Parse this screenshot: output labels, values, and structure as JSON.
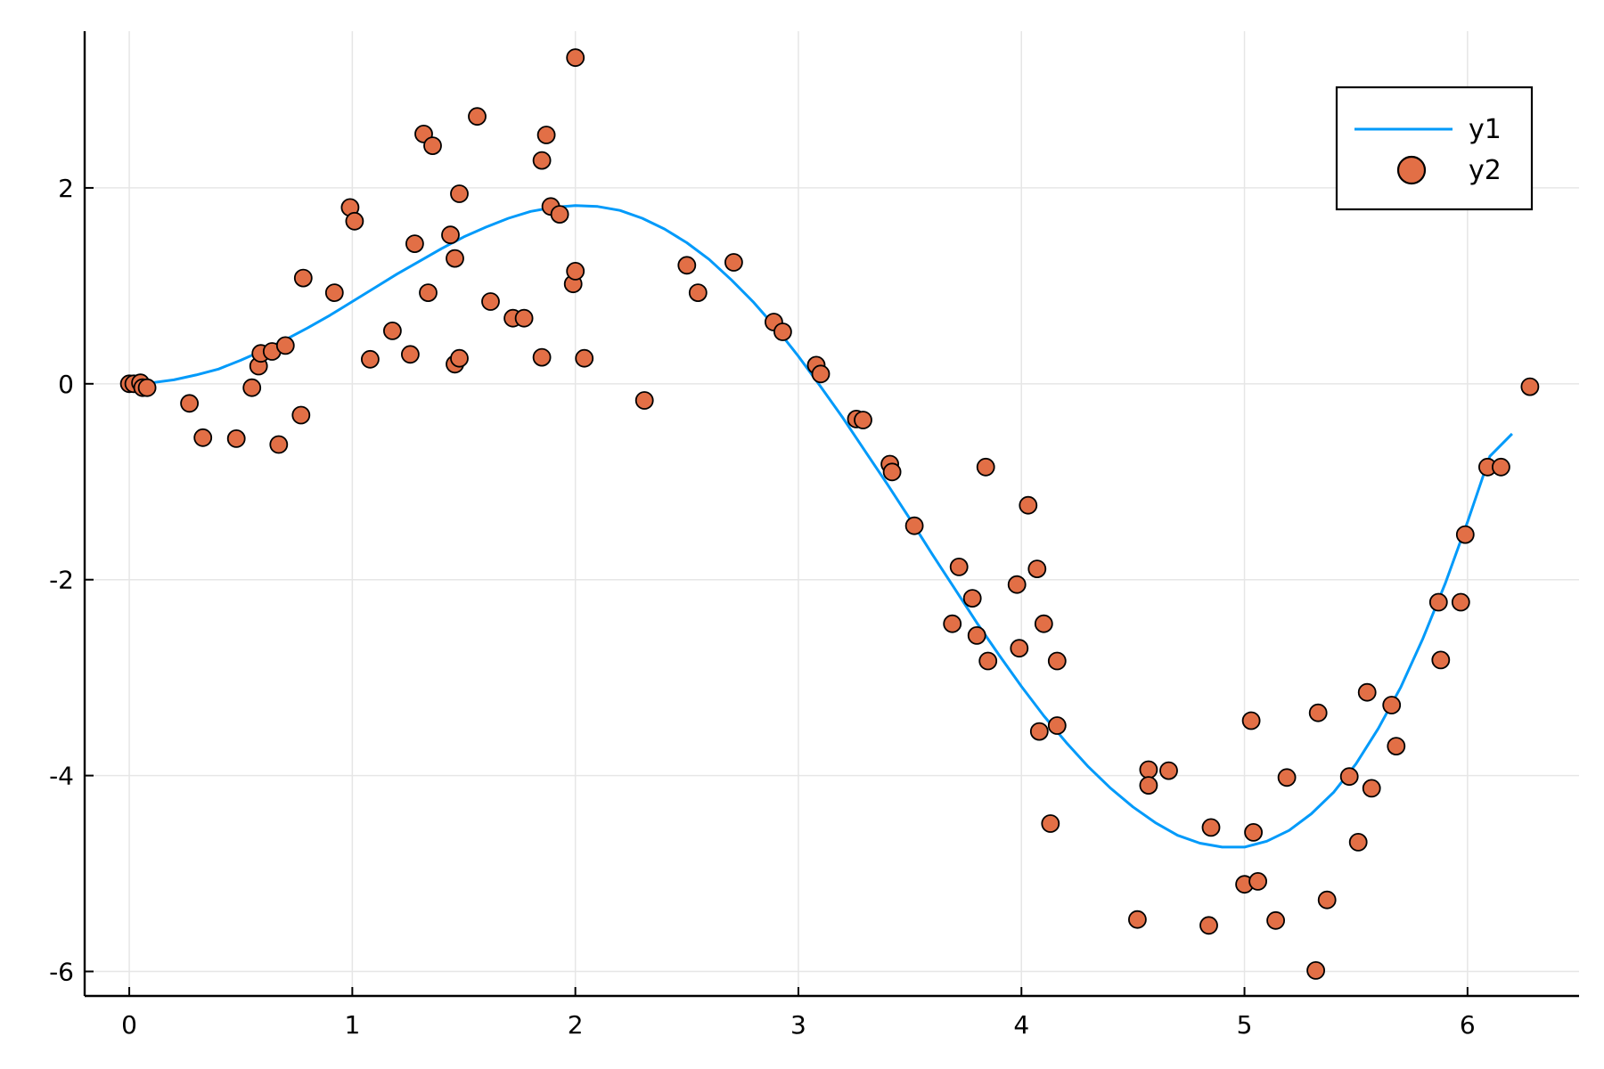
{
  "chart_data": {
    "type": "scatter",
    "title": "",
    "xlabel": "",
    "ylabel": "",
    "xlim": [
      -0.2,
      6.5
    ],
    "ylim": [
      -6.25,
      3.6
    ],
    "xticks": [
      0,
      1,
      2,
      3,
      4,
      5,
      6
    ],
    "yticks": [
      -6,
      -4,
      -2,
      0,
      2
    ],
    "grid": true,
    "legend": "top-right",
    "series": [
      {
        "name": "y1",
        "kind": "line",
        "color": "#009AFA",
        "x": [
          0.1,
          0.2,
          0.3,
          0.4,
          0.5,
          0.6,
          0.7,
          0.8,
          0.9,
          1.0,
          1.1,
          1.2,
          1.3,
          1.4,
          1.5,
          1.6,
          1.7,
          1.8,
          1.9,
          2.0,
          2.1,
          2.2,
          2.3,
          2.4,
          2.5,
          2.6,
          2.7,
          2.8,
          2.9,
          3.0,
          3.1,
          3.2,
          3.3,
          3.4,
          3.5,
          3.6,
          3.7,
          3.8,
          3.9,
          4.0,
          4.1,
          4.2,
          4.3,
          4.4,
          4.5,
          4.6,
          4.7,
          4.8,
          4.9,
          5.0,
          5.1,
          5.2,
          5.3,
          5.4,
          5.5,
          5.6,
          5.7,
          5.8,
          5.9,
          6.0,
          6.1,
          6.2
        ],
        "y": [
          0.01,
          0.04,
          0.09,
          0.15,
          0.24,
          0.34,
          0.45,
          0.57,
          0.7,
          0.84,
          0.98,
          1.12,
          1.25,
          1.38,
          1.5,
          1.6,
          1.69,
          1.76,
          1.8,
          1.82,
          1.81,
          1.77,
          1.69,
          1.58,
          1.44,
          1.27,
          1.06,
          0.83,
          0.57,
          0.28,
          -0.03,
          -0.35,
          -0.69,
          -1.03,
          -1.38,
          -1.74,
          -2.09,
          -2.44,
          -2.77,
          -3.09,
          -3.39,
          -3.66,
          -3.91,
          -4.13,
          -4.32,
          -4.48,
          -4.61,
          -4.69,
          -4.73,
          -4.73,
          -4.67,
          -4.56,
          -4.39,
          -4.17,
          -3.88,
          -3.52,
          -3.1,
          -2.6,
          -2.04,
          -1.41,
          -0.74,
          -0.51
        ]
      },
      {
        "name": "y2",
        "kind": "scatter",
        "color": "#E26F46",
        "x": [
          0.0,
          0.02,
          0.05,
          0.06,
          0.08,
          0.27,
          0.33,
          0.48,
          0.55,
          0.58,
          0.59,
          0.64,
          0.67,
          0.7,
          0.77,
          0.78,
          0.92,
          0.99,
          1.01,
          1.08,
          1.18,
          1.26,
          1.28,
          1.32,
          1.34,
          1.36,
          1.44,
          1.46,
          1.46,
          1.48,
          1.48,
          1.56,
          1.62,
          1.72,
          1.77,
          1.85,
          1.85,
          1.87,
          1.89,
          1.93,
          1.99,
          2.0,
          2.0,
          2.04,
          2.31,
          2.5,
          2.55,
          2.71,
          2.89,
          2.93,
          3.08,
          3.1,
          3.26,
          3.29,
          3.41,
          3.42,
          3.52,
          3.69,
          3.72,
          3.78,
          3.8,
          3.84,
          3.85,
          3.98,
          3.99,
          4.03,
          4.07,
          4.08,
          4.1,
          4.13,
          4.16,
          4.16,
          4.52,
          4.57,
          4.57,
          4.66,
          4.84,
          4.85,
          5.0,
          5.03,
          5.04,
          5.06,
          5.14,
          5.19,
          5.32,
          5.33,
          5.37,
          5.47,
          5.51,
          5.55,
          5.57,
          5.66,
          5.68,
          5.87,
          5.88,
          5.97,
          5.99,
          6.09,
          6.15,
          6.28
        ],
        "y": [
          0.0,
          0.0,
          0.01,
          -0.04,
          -0.04,
          -0.2,
          -0.55,
          -0.56,
          -0.04,
          0.18,
          0.31,
          0.33,
          -0.62,
          0.39,
          -0.32,
          1.08,
          0.93,
          1.8,
          1.66,
          0.25,
          0.54,
          0.3,
          1.43,
          2.55,
          0.93,
          2.43,
          1.52,
          1.28,
          0.2,
          0.26,
          1.94,
          2.73,
          0.84,
          0.67,
          0.67,
          2.28,
          0.27,
          2.54,
          1.81,
          1.73,
          1.02,
          1.15,
          3.33,
          0.26,
          -0.17,
          1.21,
          0.93,
          1.24,
          0.63,
          0.53,
          0.19,
          0.1,
          -0.36,
          -0.37,
          -0.82,
          -0.9,
          -1.45,
          -2.45,
          -1.87,
          -2.19,
          -2.57,
          -0.85,
          -2.83,
          -2.05,
          -2.7,
          -1.24,
          -1.89,
          -3.55,
          -2.45,
          -4.49,
          -3.49,
          -2.83,
          -5.47,
          -3.94,
          -4.1,
          -3.95,
          -5.53,
          -4.53,
          -5.11,
          -3.44,
          -4.58,
          -5.08,
          -5.48,
          -4.02,
          -5.99,
          -3.36,
          -5.27,
          -4.01,
          -4.68,
          -3.15,
          -4.13,
          -3.28,
          -3.7,
          -2.23,
          -2.82,
          -2.23,
          -1.54,
          -0.85,
          -0.85,
          -0.03
        ]
      }
    ]
  }
}
